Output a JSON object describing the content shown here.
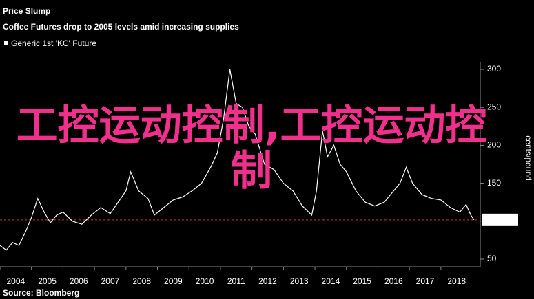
{
  "chart_data": {
    "type": "line",
    "title": "Price Slump",
    "subtitle": "Coffee Futures drop to 2005 levels amid increasing supplies",
    "y_label": "cents/pound",
    "source": "Source: Bloomberg",
    "overlay_text": "工控运动控制,工控运动控制",
    "x": [
      2004.0,
      2004.2,
      2004.4,
      2004.6,
      2004.8,
      2005.0,
      2005.2,
      2005.4,
      2005.6,
      2005.8,
      2006.0,
      2006.3,
      2006.6,
      2006.9,
      2007.2,
      2007.5,
      2007.8,
      2008.0,
      2008.15,
      2008.4,
      2008.7,
      2008.9,
      2009.2,
      2009.5,
      2009.8,
      2010.1,
      2010.4,
      2010.7,
      2010.9,
      2011.1,
      2011.3,
      2011.5,
      2011.7,
      2011.9,
      2012.1,
      2012.4,
      2012.7,
      2013.0,
      2013.3,
      2013.6,
      2013.9,
      2014.05,
      2014.24,
      2014.4,
      2014.6,
      2014.8,
      2015.0,
      2015.3,
      2015.6,
      2015.9,
      2016.2,
      2016.5,
      2016.7,
      2016.9,
      2017.1,
      2017.4,
      2017.7,
      2018.0,
      2018.3,
      2018.6,
      2018.8,
      2018.95,
      2019.05
    ],
    "series": [
      {
        "name": "Generic 1st 'KC' Future",
        "color": "#ffffff",
        "values": [
          68,
          62,
          72,
          68,
          85,
          105,
          130,
          112,
          98,
          108,
          112,
          100,
          96,
          108,
          118,
          110,
          128,
          140,
          165,
          140,
          130,
          108,
          118,
          128,
          132,
          140,
          150,
          172,
          190,
          235,
          300,
          255,
          250,
          225,
          215,
          175,
          168,
          150,
          140,
          120,
          108,
          140,
          219,
          185,
          200,
          175,
          165,
          140,
          125,
          120,
          125,
          140,
          150,
          171,
          150,
          135,
          130,
          128,
          118,
          112,
          122,
          108,
          101.75
        ]
      }
    ],
    "last_value": 101.75,
    "xlim": [
      2004,
      2019.25
    ],
    "xticks": [
      2004,
      2005,
      2006,
      2007,
      2008,
      2009,
      2010,
      2011,
      2012,
      2013,
      2014,
      2015,
      2016,
      2017,
      2018
    ],
    "ylim": [
      40,
      310
    ],
    "yticks": [
      50,
      100,
      150,
      200,
      250,
      300
    ]
  }
}
